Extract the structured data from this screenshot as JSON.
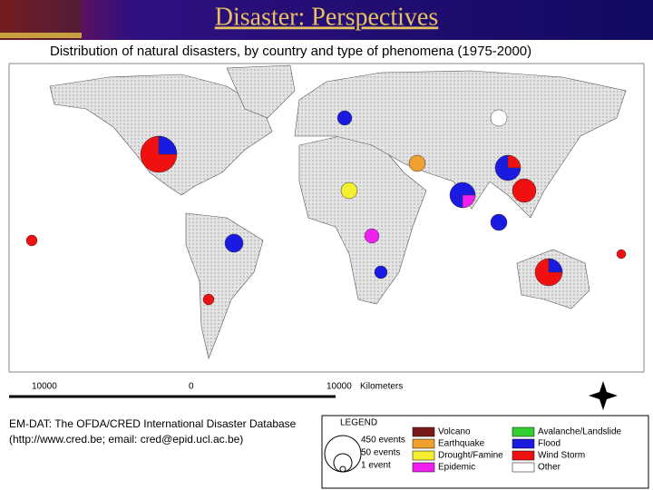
{
  "header": {
    "title": "Disaster:  Perspectives"
  },
  "map": {
    "title": "Distribution of natural disasters, by country and type of phenomena (1975-2000)",
    "scale": {
      "left": "10000",
      "middle": "0",
      "right": "10000",
      "unit": "Kilometers"
    }
  },
  "source": {
    "name": "EM-DAT: The OFDA/CRED International Disaster Database",
    "contact": "(http://www.cred.be; email: cred@epid.ucl.ac.be)"
  },
  "legend": {
    "title": "LEGEND",
    "sizes": [
      "450 events",
      "50 events",
      "1 event"
    ],
    "items": [
      {
        "label": "Volcano",
        "color": "#7a1a1a"
      },
      {
        "label": "Earthquake",
        "color": "#f0a030"
      },
      {
        "label": "Drought/Famine",
        "color": "#f4ee30"
      },
      {
        "label": "Epidemic",
        "color": "#f020f0"
      },
      {
        "label": "Avalanche/Landslide",
        "color": "#30d030"
      },
      {
        "label": "Flood",
        "color": "#1a1ae0"
      },
      {
        "label": "Wind Storm",
        "color": "#f01010"
      },
      {
        "label": "Other",
        "color": "#ffffff"
      }
    ]
  }
}
